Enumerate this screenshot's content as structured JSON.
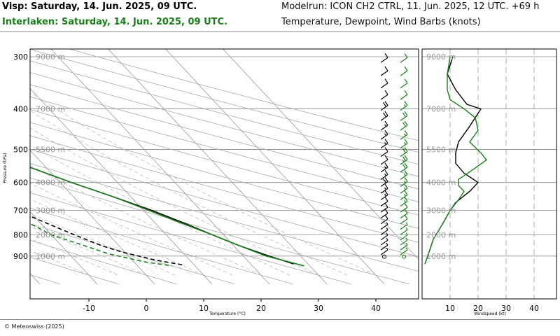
{
  "header": {
    "station_1": "Visp: Saturday, 14. Jun. 2025, 09 UTC.",
    "station_2": "Interlaken: Saturday, 14. Jun. 2025, 09 UTC.",
    "model_run": "Modelrun: ICON CH2 CTRL, 11. Jun. 2025, 12 UTC. +69 h",
    "subtitle": "Temperature, Dewpoint, Wind Barbs (knots)"
  },
  "footer": {
    "credit": "© Meteoswiss (2025)"
  },
  "colors": {
    "visp": "#000000",
    "interlaken": "#1a7f1a",
    "grid": "#bbbbbb",
    "altitude_label": "#9a9a9a"
  },
  "chart_data": [
    {
      "type": "line",
      "name": "skew-t",
      "xlabel": "Temperature (°C)",
      "ylabel": "Pressure (hPa)",
      "x_ticks": [
        -10,
        0,
        10,
        20,
        30,
        40
      ],
      "pressure_ticks": [
        300,
        400,
        500,
        600,
        700,
        800,
        900
      ],
      "altitude_labels": [
        {
          "p": 300,
          "label": "9000 m"
        },
        {
          "p": 400,
          "label": "7000 m"
        },
        {
          "p": 500,
          "label": "5500 m"
        },
        {
          "p": 600,
          "label": "4000 m"
        },
        {
          "p": 700,
          "label": "3000 m"
        },
        {
          "p": 800,
          "label": "2000 m"
        },
        {
          "p": 900,
          "label": "1000 m"
        }
      ],
      "series": [
        {
          "name": "Visp",
          "variable": "temperature",
          "color": "#000000",
          "points": [
            [
              300,
              -33
            ],
            [
              330,
              -28.5
            ],
            [
              360,
              -25
            ],
            [
              400,
              -19
            ],
            [
              450,
              -14
            ],
            [
              500,
              -8
            ],
            [
              550,
              -3
            ],
            [
              600,
              2
            ],
            [
              650,
              7
            ],
            [
              700,
              11.5
            ],
            [
              750,
              15
            ],
            [
              800,
              18
            ],
            [
              850,
              21
            ],
            [
              900,
              24.5
            ],
            [
              940,
              27.5
            ]
          ]
        },
        {
          "name": "Visp",
          "variable": "dewpoint",
          "color": "#000000",
          "points": [
            [
              300,
              -38
            ],
            [
              340,
              -36
            ],
            [
              370,
              -38
            ],
            [
              400,
              -40.5
            ],
            [
              430,
              -38
            ],
            [
              470,
              -34
            ],
            [
              500,
              -31.5
            ],
            [
              550,
              -24
            ],
            [
              600,
              -17
            ],
            [
              650,
              -14
            ],
            [
              700,
              -12
            ],
            [
              750,
              -9
            ],
            [
              800,
              -6
            ],
            [
              850,
              -3
            ],
            [
              880,
              -0.5
            ],
            [
              920,
              4
            ],
            [
              945,
              8
            ]
          ]
        },
        {
          "name": "Interlaken",
          "variable": "temperature",
          "color": "#1a7f1a",
          "points": [
            [
              300,
              -34
            ],
            [
              330,
              -29
            ],
            [
              360,
              -25.5
            ],
            [
              400,
              -19.5
            ],
            [
              450,
              -14
            ],
            [
              500,
              -8
            ],
            [
              550,
              -3
            ],
            [
              600,
              2
            ],
            [
              650,
              7
            ],
            [
              700,
              11
            ],
            [
              750,
              14.5
            ],
            [
              800,
              18
            ],
            [
              850,
              21
            ],
            [
              900,
              24
            ],
            [
              950,
              29
            ]
          ]
        },
        {
          "name": "Interlaken",
          "variable": "dewpoint",
          "color": "#1a7f1a",
          "points": [
            [
              300,
              -40
            ],
            [
              330,
              -38
            ],
            [
              360,
              -33
            ],
            [
              400,
              -36
            ],
            [
              440,
              -37
            ],
            [
              480,
              -36
            ],
            [
              510,
              -36.5
            ],
            [
              550,
              -30
            ],
            [
              600,
              -22
            ],
            [
              640,
              -18
            ],
            [
              700,
              -15
            ],
            [
              750,
              -12
            ],
            [
              800,
              -10
            ],
            [
              850,
              -6
            ],
            [
              890,
              -3
            ],
            [
              930,
              2
            ],
            [
              950,
              6
            ]
          ]
        }
      ]
    },
    {
      "type": "line",
      "name": "wind-speed",
      "xlabel": "Windspeed (kt)",
      "x_ticks": [
        10,
        20,
        30,
        40
      ],
      "xlim": [
        0,
        48
      ],
      "series": [
        {
          "name": "Visp",
          "color": "#000000",
          "points": [
            [
              300,
              11
            ],
            [
              330,
              9
            ],
            [
              360,
              12
            ],
            [
              390,
              16
            ],
            [
              400,
              21
            ],
            [
              440,
              17
            ],
            [
              480,
              13
            ],
            [
              510,
              12
            ],
            [
              540,
              12
            ],
            [
              570,
              15
            ],
            [
              600,
              20
            ],
            [
              630,
              17
            ],
            [
              670,
              12
            ],
            [
              700,
              10
            ],
            [
              740,
              8
            ],
            [
              780,
              6
            ],
            [
              820,
              4
            ],
            [
              860,
              3
            ],
            [
              900,
              2
            ],
            [
              940,
              1
            ]
          ]
        },
        {
          "name": "Interlaken",
          "color": "#1a7f1a",
          "points": [
            [
              300,
              10
            ],
            [
              330,
              9
            ],
            [
              360,
              9
            ],
            [
              380,
              10
            ],
            [
              400,
              15
            ],
            [
              420,
              19
            ],
            [
              450,
              20
            ],
            [
              480,
              17
            ],
            [
              510,
              21
            ],
            [
              530,
              23
            ],
            [
              560,
              18
            ],
            [
              590,
              13
            ],
            [
              610,
              13
            ],
            [
              630,
              15
            ],
            [
              660,
              13
            ],
            [
              700,
              10
            ],
            [
              740,
              8
            ],
            [
              780,
              6
            ],
            [
              820,
              4
            ],
            [
              860,
              3
            ],
            [
              900,
              2
            ],
            [
              940,
              1
            ]
          ]
        }
      ]
    }
  ]
}
